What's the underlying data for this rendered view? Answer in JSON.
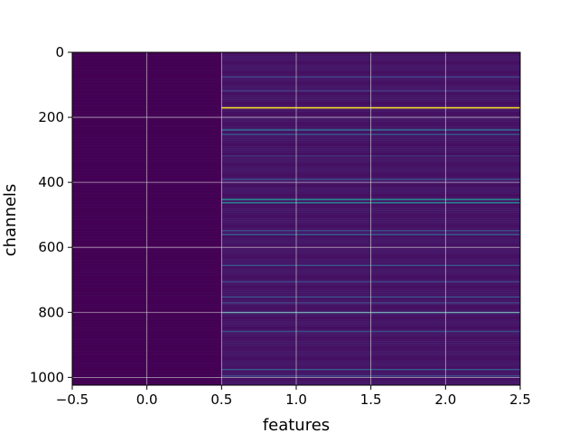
{
  "chart_data": {
    "type": "heatmap",
    "title": "",
    "xlabel": "features",
    "ylabel": "channels",
    "xlim": [
      -0.5,
      2.5
    ],
    "ylim": [
      1024,
      0
    ],
    "y_inverted": true,
    "grid": true,
    "colormap": "viridis",
    "x_ticks": [
      -0.5,
      0.0,
      0.5,
      1.0,
      1.5,
      2.0,
      2.5
    ],
    "x_tick_labels": [
      "−0.5",
      "0.0",
      "0.5",
      "1.0",
      "1.5",
      "2.0",
      "2.5"
    ],
    "y_ticks": [
      0,
      200,
      400,
      600,
      800,
      1000
    ],
    "y_tick_labels": [
      "0",
      "200",
      "400",
      "600",
      "800",
      "1000"
    ],
    "columns": [
      {
        "feature": 0,
        "baseline": 0.0,
        "bright_rows": []
      },
      {
        "feature": 1,
        "baseline": 0.06,
        "bright_rows": [
          {
            "channel": 75,
            "value": 0.22
          },
          {
            "channel": 118,
            "value": 0.2
          },
          {
            "channel": 170,
            "value": 1.0
          },
          {
            "channel": 238,
            "value": 0.45
          },
          {
            "channel": 252,
            "value": 0.35
          },
          {
            "channel": 318,
            "value": 0.18
          },
          {
            "channel": 390,
            "value": 0.3
          },
          {
            "channel": 452,
            "value": 0.62
          },
          {
            "channel": 462,
            "value": 0.55
          },
          {
            "channel": 548,
            "value": 0.28
          },
          {
            "channel": 560,
            "value": 0.38
          },
          {
            "channel": 655,
            "value": 0.32
          },
          {
            "channel": 705,
            "value": 0.22
          },
          {
            "channel": 752,
            "value": 0.3
          },
          {
            "channel": 770,
            "value": 0.25
          },
          {
            "channel": 800,
            "value": 0.5
          },
          {
            "channel": 858,
            "value": 0.3
          },
          {
            "channel": 975,
            "value": 0.35
          },
          {
            "channel": 995,
            "value": 0.28
          }
        ]
      },
      {
        "feature": 2,
        "baseline": 0.06,
        "bright_rows": [
          {
            "channel": 75,
            "value": 0.22
          },
          {
            "channel": 118,
            "value": 0.2
          },
          {
            "channel": 170,
            "value": 1.0
          },
          {
            "channel": 238,
            "value": 0.45
          },
          {
            "channel": 252,
            "value": 0.35
          },
          {
            "channel": 318,
            "value": 0.18
          },
          {
            "channel": 390,
            "value": 0.3
          },
          {
            "channel": 452,
            "value": 0.62
          },
          {
            "channel": 462,
            "value": 0.55
          },
          {
            "channel": 548,
            "value": 0.28
          },
          {
            "channel": 560,
            "value": 0.38
          },
          {
            "channel": 655,
            "value": 0.32
          },
          {
            "channel": 705,
            "value": 0.22
          },
          {
            "channel": 752,
            "value": 0.3
          },
          {
            "channel": 770,
            "value": 0.25
          },
          {
            "channel": 800,
            "value": 0.5
          },
          {
            "channel": 858,
            "value": 0.3
          },
          {
            "channel": 975,
            "value": 0.35
          },
          {
            "channel": 995,
            "value": 0.28
          }
        ]
      }
    ],
    "colors": {
      "low": "#440154",
      "high": "#fde725",
      "grid": "#d9d9d9",
      "axis": "#000000"
    }
  }
}
